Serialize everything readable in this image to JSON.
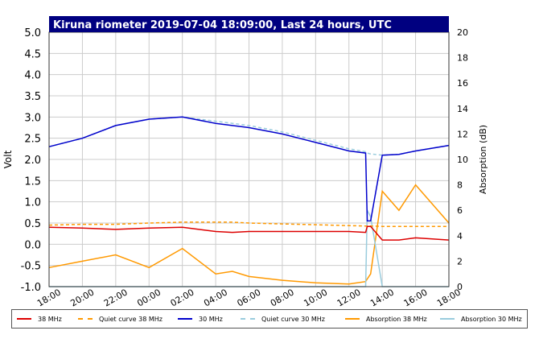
{
  "chart_data": {
    "type": "line",
    "title": "Kiruna riometer 2019-07-04 18:09:00, Last 24 hours, UTC",
    "ylabel_left": "Volt",
    "ylabel_right": "Absorption (dB)",
    "ylim_left": [
      -1.0,
      5.0
    ],
    "ylim_right": [
      0,
      20
    ],
    "yticks_left": [
      "5.0",
      "4.5",
      "4.0",
      "3.5",
      "3.0",
      "2.5",
      "2.0",
      "1.5",
      "1.0",
      "0.5",
      "0.0",
      "-0.5",
      "-1.0"
    ],
    "yticks_right": [
      "20",
      "18",
      "16",
      "14",
      "12",
      "10",
      "8",
      "6",
      "4",
      "2",
      "0"
    ],
    "xticks": [
      "18:00",
      "20:00",
      "22:00",
      "00:00",
      "02:00",
      "04:00",
      "06:00",
      "08:00",
      "10:00",
      "12:00",
      "14:00",
      "16:00",
      "18:00"
    ],
    "grid": true,
    "x_hours": [
      0,
      2,
      4,
      6,
      8,
      10,
      11,
      12,
      14,
      16,
      18,
      19,
      19.1,
      19.3,
      20,
      21,
      22,
      24
    ],
    "series": [
      {
        "name": "38 MHz",
        "color": "#dd0000",
        "axis": "left",
        "values": [
          0.4,
          0.38,
          0.35,
          0.38,
          0.4,
          0.3,
          0.28,
          0.3,
          0.3,
          0.3,
          0.3,
          0.28,
          0.42,
          0.42,
          0.1,
          0.1,
          0.15,
          0.1
        ]
      },
      {
        "name": "Quiet curve 38 MHz",
        "color": "#ff9900",
        "axis": "left",
        "values": [
          0.45,
          0.47,
          0.47,
          0.5,
          0.52,
          0.52,
          0.52,
          0.5,
          0.48,
          0.46,
          0.44,
          0.43,
          0.43,
          0.43,
          0.42,
          0.42,
          0.42,
          0.42
        ]
      },
      {
        "name": "30 MHz",
        "color": "#0000cc",
        "axis": "left",
        "values": [
          2.3,
          2.5,
          2.8,
          2.95,
          3.0,
          2.85,
          2.8,
          2.75,
          2.6,
          2.4,
          2.2,
          2.15,
          0.55,
          0.55,
          2.1,
          2.12,
          2.2,
          2.33
        ]
      },
      {
        "name": "Quiet curve 30 MHz",
        "color": "#99ccdd",
        "axis": "left",
        "values": [
          2.3,
          2.5,
          2.8,
          2.95,
          3.0,
          2.9,
          2.85,
          2.8,
          2.65,
          2.45,
          2.25,
          2.18,
          2.15,
          2.13,
          2.1,
          2.12,
          2.2,
          2.33
        ]
      },
      {
        "name": "Absorption 38 MHz",
        "color": "#ff9900",
        "axis": "right",
        "values": [
          1.5,
          2.0,
          2.5,
          1.5,
          3.0,
          1.0,
          1.2,
          0.8,
          0.5,
          0.3,
          0.2,
          0.4,
          0.6,
          1.0,
          7.5,
          6.0,
          8.0,
          5.0
        ]
      },
      {
        "name": "Absorption 30 MHz",
        "color": "#99ccdd",
        "axis": "right",
        "values": [
          0,
          0,
          0,
          0,
          0,
          0,
          0,
          0,
          0,
          0,
          0,
          0,
          6.0,
          5.5,
          0,
          0,
          0,
          0
        ]
      }
    ]
  },
  "legend": [
    {
      "label": "38 MHz",
      "color": "#dd0000",
      "style": "solid"
    },
    {
      "label": "Quiet curve 38 MHz",
      "color": "#ff9900",
      "style": "dashed"
    },
    {
      "label": "30 MHz",
      "color": "#0000cc",
      "style": "solid"
    },
    {
      "label": "Quiet curve 30 MHz",
      "color": "#99ccdd",
      "style": "dashed"
    },
    {
      "label": "Absorption 38 MHz",
      "color": "#ff9900",
      "style": "solid"
    },
    {
      "label": "Absorption 30 MHz",
      "color": "#99ccdd",
      "style": "solid"
    }
  ]
}
